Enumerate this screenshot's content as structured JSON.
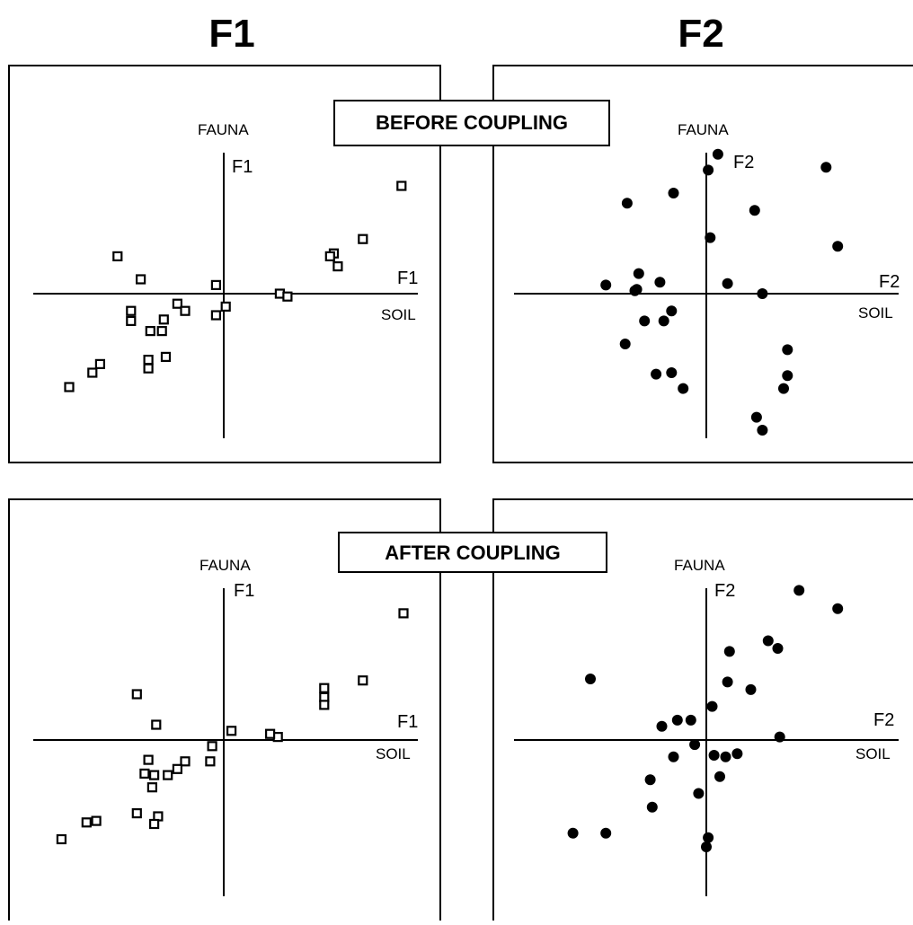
{
  "columns": [
    "F1",
    "F2"
  ],
  "panel_titles": {
    "before": "BEFORE COUPLING",
    "after": "AFTER COUPLING"
  },
  "colors": {
    "ink": "#000000",
    "background": "#ffffff"
  },
  "chart_data": [
    {
      "type": "scatter",
      "id": "before-f1",
      "marker": "open-square",
      "axis_names": {
        "y": "FAUNA",
        "x": "SOIL"
      },
      "axis_codes": {
        "y": "F1",
        "x": "F1"
      },
      "xlim": [
        -1,
        1
      ],
      "ylim": [
        -1,
        1
      ],
      "grid": false,
      "points": [
        [
          0.92,
          0.75
        ],
        [
          0.72,
          0.38
        ],
        [
          0.57,
          0.28
        ],
        [
          0.59,
          0.19
        ],
        [
          0.55,
          0.26
        ],
        [
          0.29,
          0.0
        ],
        [
          0.33,
          -0.02
        ],
        [
          -0.04,
          0.06
        ],
        [
          0.01,
          -0.09
        ],
        [
          -0.04,
          -0.15
        ],
        [
          -0.24,
          -0.07
        ],
        [
          -0.2,
          -0.12
        ],
        [
          -0.31,
          -0.18
        ],
        [
          -0.48,
          -0.12
        ],
        [
          -0.48,
          -0.19
        ],
        [
          -0.32,
          -0.26
        ],
        [
          -0.38,
          -0.26
        ],
        [
          -0.43,
          0.1
        ],
        [
          -0.55,
          0.26
        ],
        [
          -0.3,
          -0.44
        ],
        [
          -0.39,
          -0.46
        ],
        [
          -0.39,
          -0.52
        ],
        [
          -0.64,
          -0.49
        ],
        [
          -0.68,
          -0.55
        ],
        [
          -0.8,
          -0.65
        ]
      ]
    },
    {
      "type": "scatter",
      "id": "before-f2",
      "marker": "filled-circle",
      "axis_names": {
        "y": "FAUNA",
        "x": "SOIL"
      },
      "axis_codes": {
        "y": "F2",
        "x": "F2"
      },
      "xlim": [
        -1,
        1
      ],
      "ylim": [
        -1,
        1
      ],
      "grid": false,
      "points": [
        [
          0.06,
          0.97
        ],
        [
          0.01,
          0.86
        ],
        [
          0.62,
          0.88
        ],
        [
          -0.17,
          0.7
        ],
        [
          -0.41,
          0.63
        ],
        [
          0.25,
          0.58
        ],
        [
          0.02,
          0.39
        ],
        [
          0.68,
          0.33
        ],
        [
          -0.35,
          0.14
        ],
        [
          -0.52,
          0.06
        ],
        [
          -0.37,
          0.02
        ],
        [
          -0.24,
          0.08
        ],
        [
          -0.36,
          0.03
        ],
        [
          0.11,
          0.07
        ],
        [
          0.29,
          0.0
        ],
        [
          -0.18,
          -0.12
        ],
        [
          -0.32,
          -0.19
        ],
        [
          -0.22,
          -0.19
        ],
        [
          -0.42,
          -0.35
        ],
        [
          0.42,
          -0.39
        ],
        [
          -0.26,
          -0.56
        ],
        [
          -0.18,
          -0.55
        ],
        [
          0.42,
          -0.57
        ],
        [
          -0.12,
          -0.66
        ],
        [
          0.4,
          -0.66
        ],
        [
          0.26,
          -0.86
        ],
        [
          0.29,
          -0.95
        ]
      ]
    },
    {
      "type": "scatter",
      "id": "after-f1",
      "marker": "open-square",
      "axis_names": {
        "y": "FAUNA",
        "x": "SOIL"
      },
      "axis_codes": {
        "y": "F1",
        "x": "F1"
      },
      "xlim": [
        -1,
        1
      ],
      "ylim": [
        -1,
        1
      ],
      "grid": false,
      "points": [
        [
          0.93,
          0.83
        ],
        [
          0.72,
          0.39
        ],
        [
          0.52,
          0.34
        ],
        [
          0.52,
          0.28
        ],
        [
          0.52,
          0.23
        ],
        [
          0.28,
          0.02
        ],
        [
          0.24,
          0.04
        ],
        [
          0.04,
          0.06
        ],
        [
          -0.35,
          0.1
        ],
        [
          -0.45,
          0.3
        ],
        [
          -0.06,
          -0.04
        ],
        [
          -0.07,
          -0.14
        ],
        [
          -0.2,
          -0.14
        ],
        [
          -0.24,
          -0.19
        ],
        [
          -0.29,
          -0.23
        ],
        [
          -0.36,
          -0.23
        ],
        [
          -0.41,
          -0.22
        ],
        [
          -0.39,
          -0.13
        ],
        [
          -0.37,
          -0.31
        ],
        [
          -0.45,
          -0.48
        ],
        [
          -0.34,
          -0.5
        ],
        [
          -0.36,
          -0.55
        ],
        [
          -0.66,
          -0.53
        ],
        [
          -0.71,
          -0.54
        ],
        [
          -0.84,
          -0.65
        ]
      ]
    },
    {
      "type": "scatter",
      "id": "after-f2",
      "marker": "filled-circle",
      "axis_names": {
        "y": "FAUNA",
        "x": "SOIL"
      },
      "axis_codes": {
        "y": "F2",
        "x": "F2"
      },
      "xlim": [
        -1,
        1
      ],
      "ylim": [
        -1,
        1
      ],
      "grid": false,
      "points": [
        [
          0.48,
          0.98
        ],
        [
          0.68,
          0.86
        ],
        [
          0.32,
          0.65
        ],
        [
          0.37,
          0.6
        ],
        [
          0.12,
          0.58
        ],
        [
          -0.6,
          0.4
        ],
        [
          0.11,
          0.38
        ],
        [
          0.23,
          0.33
        ],
        [
          -0.15,
          0.13
        ],
        [
          -0.08,
          0.13
        ],
        [
          0.03,
          0.22
        ],
        [
          -0.23,
          0.09
        ],
        [
          0.38,
          0.02
        ],
        [
          -0.06,
          -0.03
        ],
        [
          0.04,
          -0.1
        ],
        [
          0.1,
          -0.11
        ],
        [
          0.16,
          -0.09
        ],
        [
          -0.17,
          -0.11
        ],
        [
          0.07,
          -0.24
        ],
        [
          -0.29,
          -0.26
        ],
        [
          -0.04,
          -0.35
        ],
        [
          -0.28,
          -0.44
        ],
        [
          -0.69,
          -0.61
        ],
        [
          -0.52,
          -0.61
        ],
        [
          0.01,
          -0.64
        ],
        [
          0.0,
          -0.7
        ]
      ]
    }
  ]
}
